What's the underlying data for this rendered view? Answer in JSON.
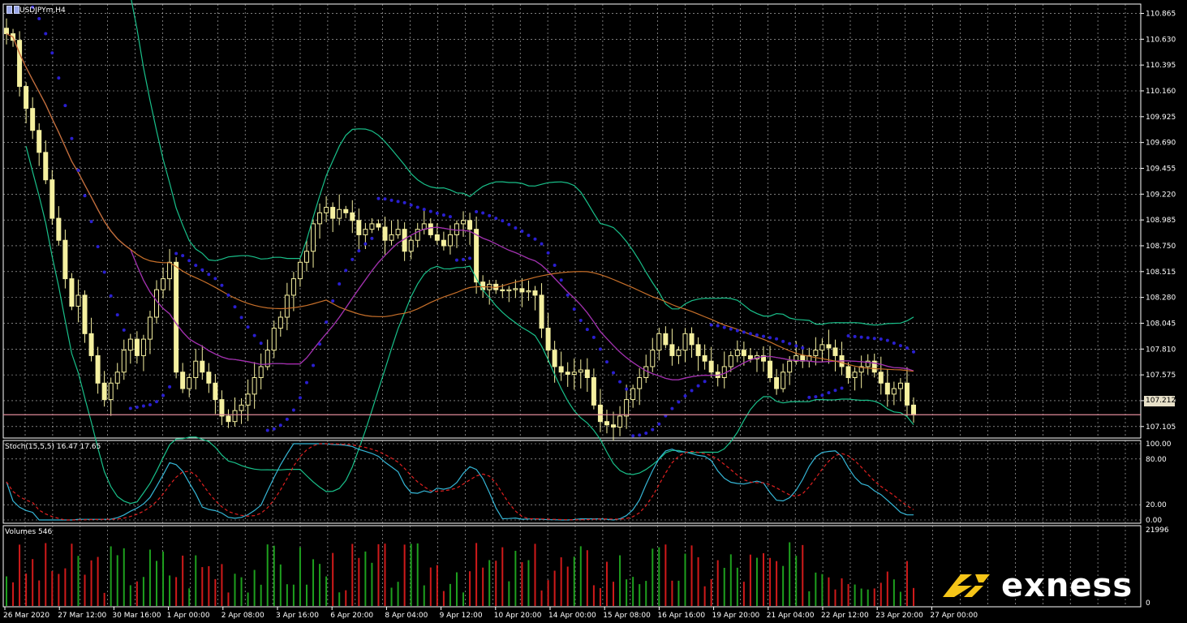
{
  "window": {
    "symbol_label": "USDJPYm,H4",
    "current_price_tag": "107.212"
  },
  "indicators": {
    "stoch_label": "Stoch(15,5,5) 16.47 17.65",
    "volume_label": "Volumes 546"
  },
  "price_axis": {
    "ticks": [
      "110.865",
      "110.630",
      "110.395",
      "110.160",
      "109.925",
      "109.690",
      "109.455",
      "109.220",
      "108.985",
      "108.750",
      "108.515",
      "108.280",
      "108.045",
      "107.810",
      "107.575",
      "107.340",
      "107.105"
    ]
  },
  "stoch_axis": {
    "ticks": [
      "100.00",
      "80.00",
      "20.00",
      "0.00"
    ]
  },
  "volume_axis": {
    "ticks": [
      "21996",
      "0"
    ]
  },
  "time_axis": {
    "ticks": [
      "26 Mar 2020",
      "27 Mar 12:00",
      "30 Mar 16:00",
      "1 Apr 00:00",
      "2 Apr 08:00",
      "3 Apr 16:00",
      "6 Apr 20:00",
      "8 Apr 04:00",
      "9 Apr 12:00",
      "10 Apr 20:00",
      "14 Apr 00:00",
      "15 Apr 08:00",
      "16 Apr 16:00",
      "19 Apr 20:00",
      "21 Apr 04:00",
      "22 Apr 12:00",
      "23 Apr 20:00",
      "27 Apr 00:00"
    ]
  },
  "brand": {
    "name": "exness"
  },
  "colors": {
    "background": "#000000",
    "grid": "#c8c8c8",
    "candle": "#f5f0a0",
    "sar_dots": "#2a1fd0",
    "bollinger": "#19c08a",
    "ma_purple": "#b020b0",
    "ma_orange": "#c8702a",
    "stoch_main": "#35b6d6",
    "stoch_signal": "#e02020",
    "volume_up": "#1ea01e",
    "volume_down": "#d01a1a",
    "price_line": "#e08a9a",
    "brand_yellow": "#f5c518"
  },
  "chart_data": {
    "type": "candlestick",
    "symbol": "USDJPYm",
    "timeframe": "H4",
    "ylim": [
      107.0,
      110.95
    ],
    "current_price": 107.212,
    "close_series": [
      110.68,
      110.62,
      110.2,
      110.0,
      109.8,
      109.6,
      109.35,
      109.0,
      108.8,
      108.45,
      108.2,
      108.3,
      107.95,
      107.75,
      107.5,
      107.35,
      107.5,
      107.6,
      107.8,
      107.9,
      107.75,
      107.9,
      108.1,
      108.35,
      108.45,
      108.6,
      107.6,
      107.45,
      107.55,
      107.7,
      107.6,
      107.5,
      107.35,
      107.2,
      107.15,
      107.25,
      107.3,
      107.4,
      107.55,
      107.65,
      107.8,
      108.0,
      108.1,
      108.3,
      108.45,
      108.6,
      108.7,
      108.95,
      109.05,
      109.1,
      109.0,
      109.08,
      109.05,
      108.98,
      108.85,
      108.9,
      108.95,
      108.92,
      108.8,
      108.85,
      108.9,
      108.7,
      108.8,
      108.9,
      108.95,
      108.85,
      108.8,
      108.75,
      108.85,
      108.95,
      108.98,
      108.9,
      108.42,
      108.35,
      108.4,
      108.35,
      108.34,
      108.35,
      108.36,
      108.33,
      108.34,
      108.3,
      108.0,
      107.8,
      107.65,
      107.6,
      107.58,
      107.6,
      107.62,
      107.55,
      107.3,
      107.15,
      107.12,
      107.1,
      107.2,
      107.35,
      107.45,
      107.55,
      107.65,
      107.8,
      107.95,
      107.85,
      107.75,
      107.8,
      107.95,
      107.85,
      107.75,
      107.7,
      107.6,
      107.55,
      107.65,
      107.75,
      107.8,
      107.75,
      107.72,
      107.75,
      107.7,
      107.55,
      107.45,
      107.6,
      107.7,
      107.75,
      107.7,
      107.75,
      107.8,
      107.85,
      107.82,
      107.75,
      107.65,
      107.55,
      107.6,
      107.65,
      107.7,
      107.6,
      107.5,
      107.4,
      107.45,
      107.5,
      107.3,
      107.21
    ]
  }
}
